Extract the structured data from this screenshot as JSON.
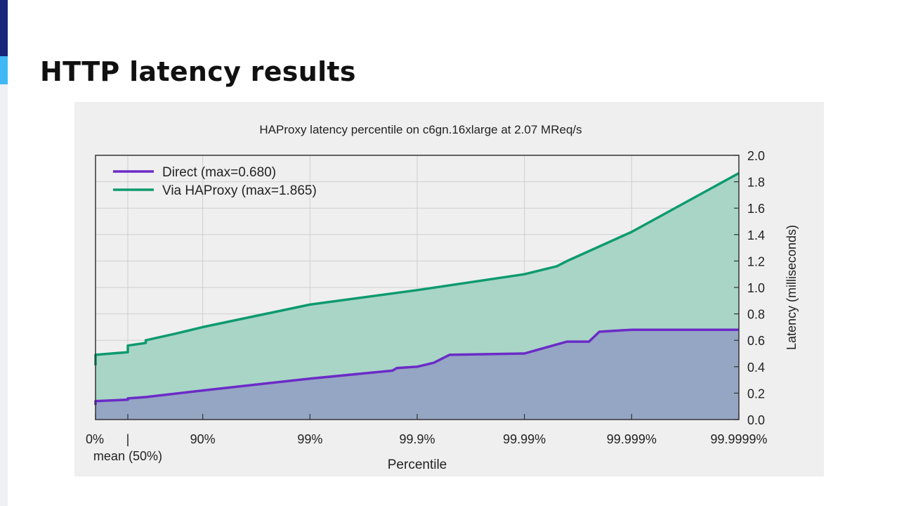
{
  "slide": {
    "title": "HTTP latency results"
  },
  "chart_data": {
    "type": "area",
    "title": "HAProxy latency percentile on c6gn.16xlarge at 2.07 MReq/s",
    "xlabel": "Percentile",
    "ylabel": "Latency (milliseconds)",
    "x_scale": "percentile-nines (log of 1-p)",
    "x_ticks": [
      {
        "value": 0,
        "label": "0%"
      },
      {
        "value": 50,
        "label": "|",
        "sublabel": "mean (50%)"
      },
      {
        "value": 90,
        "label": "90%"
      },
      {
        "value": 99,
        "label": "99%"
      },
      {
        "value": 99.9,
        "label": "99.9%"
      },
      {
        "value": 99.99,
        "label": "99.99%"
      },
      {
        "value": 99.999,
        "label": "99.999%"
      },
      {
        "value": 99.9999,
        "label": "99.9999%"
      }
    ],
    "ylim": [
      0,
      2.0
    ],
    "y_ticks": [
      "0.0",
      "0.2",
      "0.4",
      "0.6",
      "0.8",
      "1.0",
      "1.2",
      "1.4",
      "1.6",
      "1.8",
      "2.0"
    ],
    "grid": true,
    "legend_position": "top-left",
    "series": [
      {
        "name": "Via HAProxy (max=1.865)",
        "color": "#0e9a6e",
        "fill": "#a8d5c6",
        "x": [
          0,
          0,
          50,
          50,
          66,
          66,
          82,
          90,
          99,
          99.9,
          99.99,
          99.995,
          99.996,
          99.999,
          99.9999
        ],
        "y": [
          0.41,
          0.49,
          0.51,
          0.56,
          0.58,
          0.6,
          0.65,
          0.7,
          0.87,
          0.98,
          1.1,
          1.16,
          1.2,
          1.42,
          1.865
        ]
      },
      {
        "name": "Direct (max=0.680)",
        "color": "#6b2bc7",
        "fill": "#95a5c4",
        "x": [
          0,
          0,
          50,
          50,
          66,
          90,
          99,
          99.83,
          99.845,
          99.9,
          99.93,
          99.95,
          99.99,
          99.996,
          99.9975,
          99.998,
          99.999,
          99.9999
        ],
        "y": [
          0.11,
          0.14,
          0.15,
          0.16,
          0.17,
          0.22,
          0.31,
          0.37,
          0.39,
          0.4,
          0.43,
          0.49,
          0.5,
          0.59,
          0.59,
          0.665,
          0.68,
          0.68
        ]
      }
    ],
    "legend_order": [
      "Direct (max=0.680)",
      "Via HAProxy (max=1.865)"
    ]
  }
}
